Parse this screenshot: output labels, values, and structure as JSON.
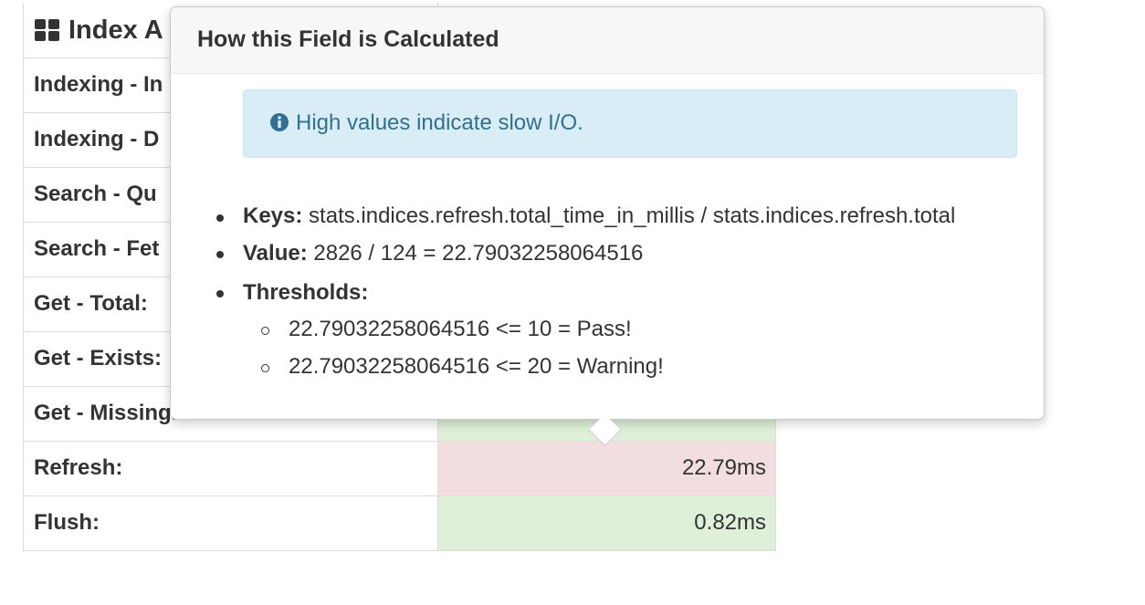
{
  "table": {
    "header": "Index A",
    "rows": [
      {
        "label": "Indexing - In"
      },
      {
        "label": "Indexing - D"
      },
      {
        "label": "Search - Qu"
      },
      {
        "label": "Search - Fet"
      },
      {
        "label": "Get - Total:"
      },
      {
        "label": "Get - Exists:"
      },
      {
        "label": "Get - Missing.",
        "cell_color": "#dff0d8"
      },
      {
        "label": "Refresh:",
        "value": "22.79ms",
        "cell_color": "#f2dede"
      },
      {
        "label": "Flush:",
        "value": "0.82ms",
        "cell_color": "#dff0d8"
      }
    ]
  },
  "popover": {
    "title": "How this Field is Calculated",
    "alert": "High values indicate slow I/O.",
    "keys_label": "Keys:",
    "keys": "stats.indices.refresh.total_time_in_millis / stats.indices.refresh.total",
    "value_label": "Value:",
    "value": "2826 / 124 = 22.79032258064516",
    "thresholds_label": "Thresholds:",
    "thresholds": [
      "22.79032258064516 <= 10 = Pass!",
      "22.79032258064516 <= 20 = Warning!"
    ]
  }
}
